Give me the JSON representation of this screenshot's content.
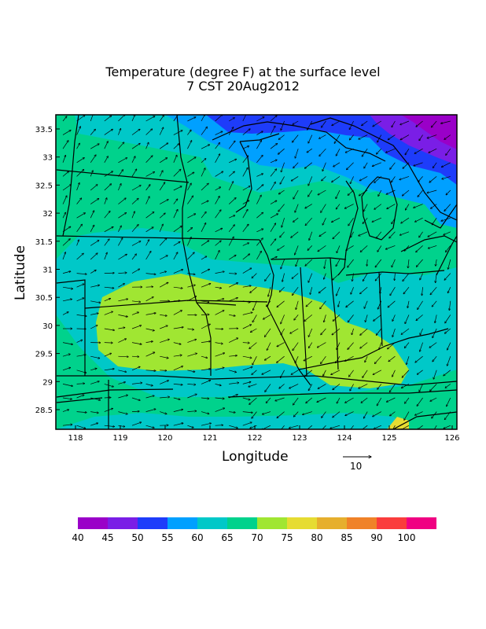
{
  "title_line1": "Temperature (degree F) at the surface level",
  "title_line2": "7 CST 20Aug2012",
  "xlabel": "Longitude",
  "ylabel": "Latitude",
  "x_ticks": [
    "118",
    "119",
    "120",
    "121",
    "122",
    "123",
    "124",
    "125",
    "126"
  ],
  "y_ticks": [
    "33.5",
    "33",
    "32.5",
    "32",
    "31.5",
    "31",
    "30.5",
    "30",
    "29.5",
    "29",
    "28.5"
  ],
  "reference_vector_label": "10",
  "colorbar": {
    "labels": [
      "40",
      "45",
      "50",
      "55",
      "60",
      "65",
      "70",
      "75",
      "80",
      "85",
      "90",
      "100"
    ],
    "colors": [
      "#9a00c8",
      "#7a1ee6",
      "#1e3cfa",
      "#00a0ff",
      "#00c8c8",
      "#00d28c",
      "#a0e632",
      "#e6dc32",
      "#e6af2d",
      "#f08228",
      "#fa3c3c",
      "#f00082"
    ]
  },
  "chart_data": {
    "type": "heatmap",
    "title": "Temperature (degree F) at the surface level",
    "subtitle": "7 CST 20Aug2012",
    "xlabel": "Longitude",
    "ylabel": "Latitude",
    "xlim": [
      117.7,
      126.1
    ],
    "ylim": [
      28.2,
      33.8
    ],
    "levels": [
      40,
      45,
      50,
      55,
      60,
      65,
      70,
      75,
      80,
      85,
      90,
      100
    ],
    "region_temps": {
      "northeast_corner": "40-50",
      "northern_upper_great_lakes": "50-60",
      "central": "65-70",
      "southwest_plains": "70-75",
      "ohio_valley": "70-75",
      "southeast_edge": "75-80"
    },
    "vector_overlay": "surface wind arrows",
    "reference_vector": 10
  }
}
